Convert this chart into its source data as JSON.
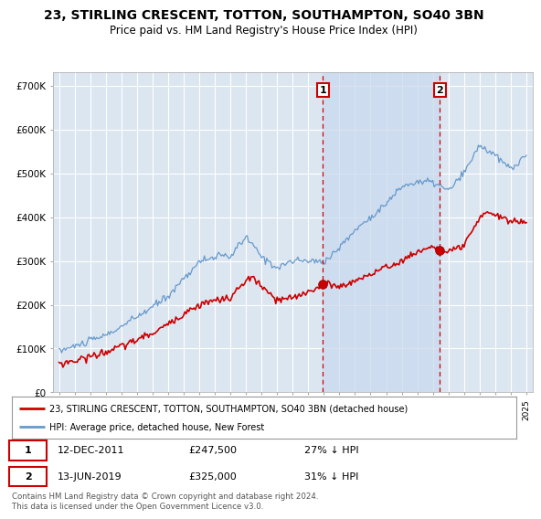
{
  "title": "23, STIRLING CRESCENT, TOTTON, SOUTHAMPTON, SO40 3BN",
  "subtitle": "Price paid vs. HM Land Registry's House Price Index (HPI)",
  "title_fontsize": 10,
  "subtitle_fontsize": 8.5,
  "background_color": "#ffffff",
  "plot_bg_color": "#dce6f1",
  "shaded_region_color": "#c8d8ee",
  "grid_color": "#ffffff",
  "ylabel_ticks": [
    "£0",
    "£100K",
    "£200K",
    "£300K",
    "£400K",
    "£500K",
    "£600K",
    "£700K"
  ],
  "ytick_values": [
    0,
    100000,
    200000,
    300000,
    400000,
    500000,
    600000,
    700000
  ],
  "ylim": [
    0,
    730000
  ],
  "xlim_start": 1994.6,
  "xlim_end": 2025.4,
  "sale1_x": 2011.95,
  "sale1_y": 247500,
  "sale1_label": "1",
  "sale2_x": 2019.45,
  "sale2_y": 325000,
  "sale2_label": "2",
  "red_line_color": "#cc0000",
  "blue_line_color": "#6699cc",
  "annotation_box_color": "#cc0000",
  "legend_label_red": "23, STIRLING CRESCENT, TOTTON, SOUTHAMPTON, SO40 3BN (detached house)",
  "legend_label_blue": "HPI: Average price, detached house, New Forest",
  "note1_label": "1",
  "note1_date": "12-DEC-2011",
  "note1_price": "£247,500",
  "note1_pct": "27% ↓ HPI",
  "note2_label": "2",
  "note2_date": "13-JUN-2019",
  "note2_price": "£325,000",
  "note2_pct": "31% ↓ HPI",
  "footer": "Contains HM Land Registry data © Crown copyright and database right 2024.\nThis data is licensed under the Open Government Licence v3.0."
}
